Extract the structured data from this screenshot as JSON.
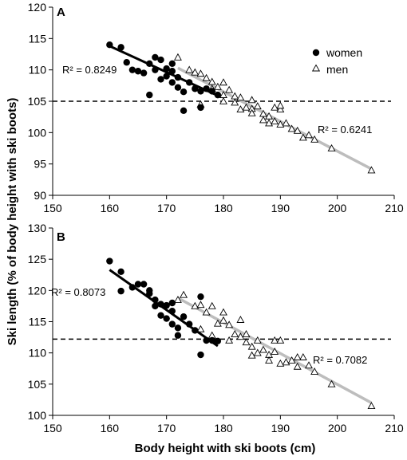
{
  "chart_data": [
    {
      "type": "scatter",
      "panel": "A",
      "xlabel": "Body height with ski boots (cm)",
      "ylabel": "Ski length (% of body height with ski boots)",
      "xlim": [
        150,
        210
      ],
      "ylim": [
        90,
        120
      ],
      "xticks": [
        150,
        160,
        170,
        180,
        190,
        200,
        210
      ],
      "yticks": [
        90,
        95,
        100,
        105,
        110,
        115,
        120
      ],
      "grid": false,
      "legend": {
        "placement": "top-right",
        "entries": [
          "women",
          "men"
        ]
      },
      "reference_line_y": 105,
      "series": [
        {
          "name": "women",
          "marker": "filled-circle",
          "color": "#000000",
          "points": [
            [
              160,
              114
            ],
            [
              162,
              113.6
            ],
            [
              163,
              111.2
            ],
            [
              164,
              110
            ],
            [
              165,
              109.8
            ],
            [
              166,
              109.5
            ],
            [
              167,
              106
            ],
            [
              167,
              111
            ],
            [
              168,
              112
            ],
            [
              168,
              110
            ],
            [
              169,
              111.6
            ],
            [
              169,
              108.5
            ],
            [
              170,
              110.2
            ],
            [
              170,
              109
            ],
            [
              171,
              111
            ],
            [
              171,
              108
            ],
            [
              172,
              107.2
            ],
            [
              172,
              108.8
            ],
            [
              173,
              103.5
            ],
            [
              173,
              106.5
            ],
            [
              174,
              108
            ],
            [
              175,
              107
            ],
            [
              176,
              104
            ],
            [
              177,
              107
            ],
            [
              178,
              106.6
            ],
            [
              179,
              106
            ],
            [
              176,
              106.6
            ],
            [
              171,
              109.8
            ]
          ],
          "fit": {
            "x": [
              160,
              179
            ],
            "y": [
              113.8,
              105.9
            ],
            "r2_label": "R² = 0.8249"
          }
        },
        {
          "name": "men",
          "marker": "open-triangle",
          "color": "#000000",
          "points": [
            [
              172,
              112
            ],
            [
              174,
              110
            ],
            [
              175,
              109.6
            ],
            [
              176,
              109.4
            ],
            [
              177,
              108.7
            ],
            [
              178,
              108.1
            ],
            [
              179,
              107.3
            ],
            [
              180,
              108
            ],
            [
              180,
              106
            ],
            [
              181,
              106.8
            ],
            [
              182,
              105.8
            ],
            [
              183,
              105.6
            ],
            [
              184,
              104
            ],
            [
              185,
              105.2
            ],
            [
              185,
              103.8
            ],
            [
              186,
              104.2
            ],
            [
              187,
              103
            ],
            [
              188,
              102.6
            ],
            [
              189,
              104
            ],
            [
              189,
              101.8
            ],
            [
              190,
              103.7
            ],
            [
              190,
              104.3
            ],
            [
              191,
              101.5
            ],
            [
              192,
              100.6
            ],
            [
              193,
              100.3
            ],
            [
              194,
              99.2
            ],
            [
              195,
              99.6
            ],
            [
              196,
              98.9
            ],
            [
              199,
              97.5
            ],
            [
              206,
              94
            ],
            [
              176,
              104.5
            ],
            [
              178,
              107
            ],
            [
              180,
              105
            ],
            [
              182,
              104.8
            ],
            [
              183,
              103.7
            ],
            [
              185,
              103.1
            ],
            [
              187,
              102
            ],
            [
              188,
              101.5
            ],
            [
              190,
              101.3
            ]
          ],
          "fit": {
            "x": [
              172,
              206
            ],
            "y": [
              110.3,
              94.2
            ],
            "r2_label": "R² = 0.6241"
          }
        }
      ]
    },
    {
      "type": "scatter",
      "panel": "B",
      "xlabel": "Body height with ski boots (cm)",
      "ylabel": "Ski length (% of body height with ski boots)",
      "xlim": [
        150,
        210
      ],
      "ylim": [
        100,
        130
      ],
      "xticks": [
        150,
        160,
        170,
        180,
        190,
        200,
        210
      ],
      "yticks": [
        100,
        105,
        110,
        115,
        120,
        125,
        130
      ],
      "grid": false,
      "reference_line_y": 112.2,
      "series": [
        {
          "name": "women",
          "marker": "filled-circle",
          "color": "#000000",
          "points": [
            [
              160,
              124.7
            ],
            [
              162,
              123
            ],
            [
              162,
              119.9
            ],
            [
              164,
              120.5
            ],
            [
              165,
              121
            ],
            [
              166,
              121
            ],
            [
              167,
              119.5
            ],
            [
              167,
              120
            ],
            [
              168,
              118.5
            ],
            [
              168,
              117.5
            ],
            [
              169,
              117.8
            ],
            [
              169,
              116
            ],
            [
              170,
              117.6
            ],
            [
              170,
              115.5
            ],
            [
              171,
              114.6
            ],
            [
              171,
              116.7
            ],
            [
              172,
              112.8
            ],
            [
              172,
              114
            ],
            [
              173,
              115.8
            ],
            [
              174,
              114.6
            ],
            [
              175,
              113.6
            ],
            [
              176,
              119
            ],
            [
              176,
              109.7
            ],
            [
              177,
              112
            ],
            [
              178,
              112
            ],
            [
              179,
              111.9
            ],
            [
              171,
              118
            ]
          ],
          "fit": {
            "x": [
              160,
              179
            ],
            "y": [
              123.3,
              111.1
            ],
            "r2_label": "R² = 0.8073"
          }
        },
        {
          "name": "men",
          "marker": "open-triangle",
          "color": "#000000",
          "points": [
            [
              172,
              118.5
            ],
            [
              173,
              119.3
            ],
            [
              175,
              117.5
            ],
            [
              176,
              117.7
            ],
            [
              177,
              116.5
            ],
            [
              178,
              117.5
            ],
            [
              179,
              114.7
            ],
            [
              180,
              115.2
            ],
            [
              180,
              116.5
            ],
            [
              181,
              112
            ],
            [
              182,
              113
            ],
            [
              183,
              112.6
            ],
            [
              184,
              113
            ],
            [
              185,
              111
            ],
            [
              185,
              109.6
            ],
            [
              186,
              112
            ],
            [
              187,
              110.5
            ],
            [
              188,
              109.7
            ],
            [
              189,
              112
            ],
            [
              189,
              110.2
            ],
            [
              190,
              112
            ],
            [
              191,
              108.5
            ],
            [
              192,
              108.8
            ],
            [
              193,
              107.8
            ],
            [
              194,
              109.3
            ],
            [
              195,
              108
            ],
            [
              196,
              107
            ],
            [
              199,
              105
            ],
            [
              206,
              101.5
            ],
            [
              176,
              113.8
            ],
            [
              178,
              112.8
            ],
            [
              181,
              114.5
            ],
            [
              183,
              115.3
            ],
            [
              184,
              111.7
            ],
            [
              186,
              110
            ],
            [
              188,
              108.8
            ],
            [
              190,
              108.3
            ],
            [
              193,
              109.3
            ]
          ],
          "fit": {
            "x": [
              172,
              206
            ],
            "y": [
              118.8,
              102
            ],
            "r2_label": "R² = 0.7082"
          }
        }
      ]
    }
  ]
}
